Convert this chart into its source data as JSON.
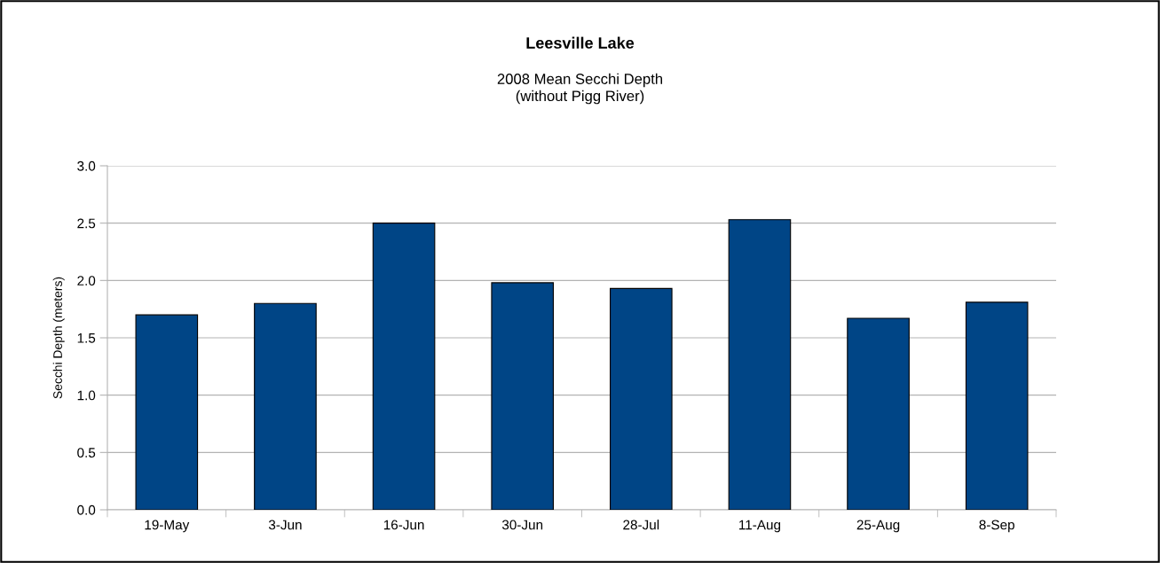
{
  "chart_data": {
    "type": "bar",
    "title": "Leesville Lake",
    "subtitle": "2008 Mean Secchi Depth\n(without Pigg River)",
    "ylabel": "Secchi Depth (meters)",
    "categories": [
      "19-May",
      "3-Jun",
      "16-Jun",
      "30-Jun",
      "28-Jul",
      "11-Aug",
      "25-Aug",
      "8-Sep"
    ],
    "values": [
      1.7,
      1.8,
      2.5,
      1.98,
      1.93,
      2.53,
      1.67,
      1.81
    ],
    "color": "#004586",
    "ylim": [
      0,
      3
    ],
    "yticks": [
      {
        "value": 0,
        "label": "0.0"
      },
      {
        "value": 0.5,
        "label": "0.5"
      },
      {
        "value": 1,
        "label": "1.0"
      },
      {
        "value": 1.5,
        "label": "1.5"
      },
      {
        "value": 2,
        "label": "2.0"
      },
      {
        "value": 2.5,
        "label": "2.5"
      },
      {
        "value": 3,
        "label": "3.0"
      }
    ],
    "grid": "y",
    "legend": false
  }
}
